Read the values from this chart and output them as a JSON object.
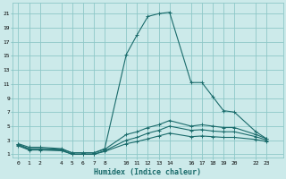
{
  "xlabel": "Humidex (Indice chaleur)",
  "bg_color": "#cceaea",
  "grid_color": "#8ec8c8",
  "line_color": "#1a6b6b",
  "x_ticks": [
    0,
    1,
    2,
    4,
    5,
    6,
    7,
    8,
    10,
    11,
    12,
    13,
    14,
    16,
    17,
    18,
    19,
    20,
    22,
    23
  ],
  "lines": [
    {
      "x": [
        0,
        1,
        2,
        4,
        5,
        6,
        7,
        8,
        10,
        11,
        12,
        13,
        14,
        16,
        17,
        18,
        19,
        20,
        22,
        23
      ],
      "y": [
        2.5,
        2.0,
        2.0,
        1.8,
        1.2,
        1.2,
        1.2,
        1.8,
        15.2,
        18.0,
        20.6,
        21.0,
        21.2,
        11.2,
        11.2,
        9.2,
        7.2,
        7.0,
        4.2,
        3.2
      ]
    },
    {
      "x": [
        0,
        1,
        2,
        4,
        5,
        6,
        7,
        8,
        10,
        11,
        12,
        13,
        14,
        16,
        17,
        18,
        19,
        20,
        22,
        23
      ],
      "y": [
        2.4,
        1.8,
        1.8,
        1.7,
        1.2,
        1.2,
        1.2,
        1.7,
        3.8,
        4.2,
        4.8,
        5.2,
        5.8,
        5.0,
        5.2,
        5.0,
        4.8,
        4.8,
        3.8,
        3.2
      ]
    },
    {
      "x": [
        0,
        1,
        2,
        4,
        5,
        6,
        7,
        8,
        10,
        11,
        12,
        13,
        14,
        16,
        17,
        18,
        19,
        20,
        22,
        23
      ],
      "y": [
        2.3,
        1.7,
        1.7,
        1.6,
        1.0,
        1.0,
        1.0,
        1.5,
        3.0,
        3.4,
        4.0,
        4.4,
        5.0,
        4.4,
        4.5,
        4.3,
        4.2,
        4.2,
        3.5,
        3.0
      ]
    },
    {
      "x": [
        0,
        1,
        2,
        4,
        5,
        6,
        7,
        8,
        10,
        11,
        12,
        13,
        14,
        16,
        17,
        18,
        19,
        20,
        22,
        23
      ],
      "y": [
        2.2,
        1.6,
        1.6,
        1.5,
        1.0,
        1.0,
        1.0,
        1.4,
        2.5,
        2.8,
        3.2,
        3.6,
        4.0,
        3.5,
        3.6,
        3.5,
        3.4,
        3.4,
        3.1,
        2.8
      ]
    }
  ],
  "ylim": [
    0.5,
    22.5
  ],
  "xlim": [
    -0.5,
    24.5
  ],
  "yticks": [
    1,
    3,
    5,
    7,
    9,
    11,
    13,
    15,
    17,
    19,
    21
  ]
}
